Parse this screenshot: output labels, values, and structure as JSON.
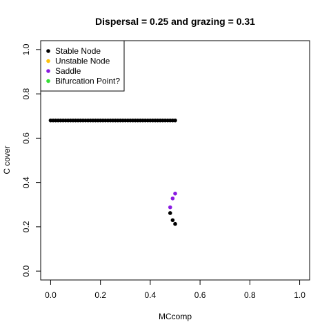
{
  "chart_data": {
    "type": "scatter",
    "title": "Dispersal =  0.25 and grazing = 0.31",
    "xlabel": "MCcomp",
    "ylabel": "C cover",
    "xlim": [
      -0.04,
      1.04
    ],
    "ylim": [
      -0.04,
      1.04
    ],
    "xticks": [
      0.0,
      0.2,
      0.4,
      0.6,
      0.8,
      1.0
    ],
    "xtick_labels": [
      "0.0",
      "0.2",
      "0.4",
      "0.6",
      "0.8",
      "1.0"
    ],
    "yticks": [
      0.0,
      0.2,
      0.4,
      0.6,
      0.8,
      1.0
    ],
    "ytick_labels": [
      "0.0",
      "0.2",
      "0.4",
      "0.6",
      "0.8",
      "1.0"
    ],
    "grid": false,
    "legend_position": "top-left",
    "legend": [
      {
        "label": "Stable Node",
        "color": "#000000"
      },
      {
        "label": "Unstable Node",
        "color": "#FFC20A"
      },
      {
        "label": "Saddle",
        "color": "#8A1BE2"
      },
      {
        "label": "Bifurcation Point?",
        "color": "#33E033"
      }
    ],
    "series": [
      {
        "name": "Stable Node",
        "color": "#000000",
        "points": [
          [
            0.0,
            0.68
          ],
          [
            0.01,
            0.68
          ],
          [
            0.02,
            0.68
          ],
          [
            0.03,
            0.68
          ],
          [
            0.04,
            0.68
          ],
          [
            0.05,
            0.68
          ],
          [
            0.06,
            0.68
          ],
          [
            0.07,
            0.68
          ],
          [
            0.08,
            0.68
          ],
          [
            0.09,
            0.68
          ],
          [
            0.1,
            0.68
          ],
          [
            0.11,
            0.68
          ],
          [
            0.12,
            0.68
          ],
          [
            0.13,
            0.68
          ],
          [
            0.14,
            0.68
          ],
          [
            0.15,
            0.68
          ],
          [
            0.16,
            0.68
          ],
          [
            0.17,
            0.68
          ],
          [
            0.18,
            0.68
          ],
          [
            0.19,
            0.68
          ],
          [
            0.2,
            0.68
          ],
          [
            0.21,
            0.68
          ],
          [
            0.22,
            0.68
          ],
          [
            0.23,
            0.68
          ],
          [
            0.24,
            0.68
          ],
          [
            0.25,
            0.68
          ],
          [
            0.26,
            0.68
          ],
          [
            0.27,
            0.68
          ],
          [
            0.28,
            0.68
          ],
          [
            0.29,
            0.68
          ],
          [
            0.3,
            0.68
          ],
          [
            0.31,
            0.68
          ],
          [
            0.32,
            0.68
          ],
          [
            0.33,
            0.68
          ],
          [
            0.34,
            0.68
          ],
          [
            0.35,
            0.68
          ],
          [
            0.36,
            0.68
          ],
          [
            0.37,
            0.68
          ],
          [
            0.38,
            0.68
          ],
          [
            0.39,
            0.68
          ],
          [
            0.4,
            0.68
          ],
          [
            0.41,
            0.68
          ],
          [
            0.42,
            0.68
          ],
          [
            0.43,
            0.68
          ],
          [
            0.44,
            0.68
          ],
          [
            0.45,
            0.68
          ],
          [
            0.46,
            0.68
          ],
          [
            0.47,
            0.68
          ],
          [
            0.48,
            0.68
          ],
          [
            0.49,
            0.68
          ],
          [
            0.5,
            0.68
          ],
          [
            0.48,
            0.262
          ],
          [
            0.49,
            0.23
          ],
          [
            0.5,
            0.213
          ]
        ]
      },
      {
        "name": "Saddle",
        "color": "#8A1BE2",
        "points": [
          [
            0.48,
            0.288
          ],
          [
            0.49,
            0.328
          ],
          [
            0.5,
            0.35
          ]
        ]
      },
      {
        "name": "Unstable Node",
        "color": "#FFC20A",
        "points": []
      },
      {
        "name": "Bifurcation Point?",
        "color": "#33E033",
        "points": []
      }
    ]
  }
}
